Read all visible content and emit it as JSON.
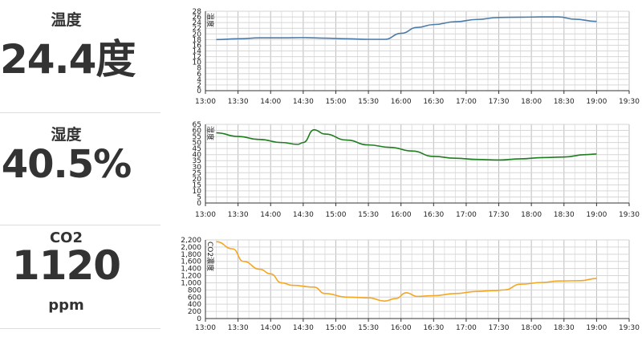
{
  "panels": [
    {
      "label": "温度",
      "value": "24.4度"
    },
    {
      "label": "湿度",
      "value": "40.5%"
    },
    {
      "label": "CO2",
      "value": "1120",
      "unit": "ppm"
    }
  ],
  "chart_data": [
    {
      "type": "line",
      "ylabel": "温度",
      "ylim": [
        0,
        28
      ],
      "yticks": [
        0,
        2,
        4,
        6,
        8,
        10,
        12,
        14,
        16,
        18,
        20,
        22,
        24,
        26,
        28
      ],
      "xticks": [
        "13:00",
        "13:30",
        "14:00",
        "14:30",
        "15:00",
        "15:30",
        "16:00",
        "16:30",
        "17:00",
        "17:30",
        "18:00",
        "18:30",
        "19:00",
        "19:30"
      ],
      "color": "#4a7bab",
      "x": [
        "13:10",
        "13:30",
        "13:50",
        "14:10",
        "14:30",
        "14:50",
        "15:10",
        "15:30",
        "15:45",
        "16:00",
        "16:15",
        "16:30",
        "16:50",
        "17:10",
        "17:30",
        "17:50",
        "18:10",
        "18:25",
        "18:40",
        "19:00"
      ],
      "values": [
        18,
        18.3,
        18.6,
        18.6,
        18.7,
        18.5,
        18.3,
        18.1,
        18.1,
        20.2,
        22.3,
        23.3,
        24.3,
        25.1,
        25.8,
        25.9,
        26.0,
        26.0,
        25.2,
        24.4
      ]
    },
    {
      "type": "line",
      "ylabel": "湿度",
      "ylim": [
        0,
        65
      ],
      "yticks": [
        0,
        5,
        10,
        15,
        20,
        25,
        30,
        35,
        40,
        45,
        50,
        55,
        60,
        65
      ],
      "xticks": [
        "13:00",
        "13:30",
        "14:00",
        "14:30",
        "15:00",
        "15:30",
        "16:00",
        "16:30",
        "17:00",
        "17:30",
        "18:00",
        "18:30",
        "19:00",
        "19:30"
      ],
      "color": "#1e7d1e",
      "x": [
        "13:10",
        "13:30",
        "13:50",
        "14:10",
        "14:25",
        "14:30",
        "14:40",
        "14:50",
        "15:10",
        "15:30",
        "15:50",
        "16:10",
        "16:30",
        "16:50",
        "17:10",
        "17:30",
        "17:50",
        "18:10",
        "18:30",
        "18:50",
        "19:00"
      ],
      "values": [
        58,
        55,
        52.5,
        50,
        48.5,
        50,
        60.5,
        57,
        52,
        48,
        46,
        43,
        38.5,
        37,
        36,
        35.5,
        36.5,
        37.5,
        38,
        40,
        40.5
      ]
    },
    {
      "type": "line",
      "ylabel": "CO2濃度",
      "ylim": [
        0,
        2200
      ],
      "yticks": [
        0,
        200,
        400,
        600,
        800,
        1000,
        1200,
        1400,
        1600,
        1800,
        2000,
        2200
      ],
      "ytick_labels": [
        "0",
        "200",
        "400",
        "600",
        "800",
        "1,000",
        "1,200",
        "1,400",
        "1,600",
        "1,800",
        "2,000",
        "2,200"
      ],
      "xticks": [
        "13:00",
        "13:30",
        "14:00",
        "14:30",
        "15:00",
        "15:30",
        "16:00",
        "16:30",
        "17:00",
        "17:30",
        "18:00",
        "18:30",
        "19:00",
        "19:30"
      ],
      "color": "#f5a623",
      "x": [
        "13:10",
        "13:25",
        "13:35",
        "13:50",
        "14:00",
        "14:10",
        "14:20",
        "14:40",
        "14:50",
        "15:10",
        "15:30",
        "15:45",
        "15:55",
        "16:05",
        "16:15",
        "16:30",
        "16:50",
        "17:10",
        "17:25",
        "17:35",
        "17:50",
        "18:10",
        "18:25",
        "18:45",
        "19:00"
      ],
      "values": [
        2150,
        1950,
        1600,
        1380,
        1250,
        1000,
        930,
        880,
        700,
        600,
        580,
        490,
        560,
        720,
        620,
        640,
        700,
        760,
        780,
        800,
        960,
        1010,
        1050,
        1060,
        1120
      ]
    }
  ]
}
